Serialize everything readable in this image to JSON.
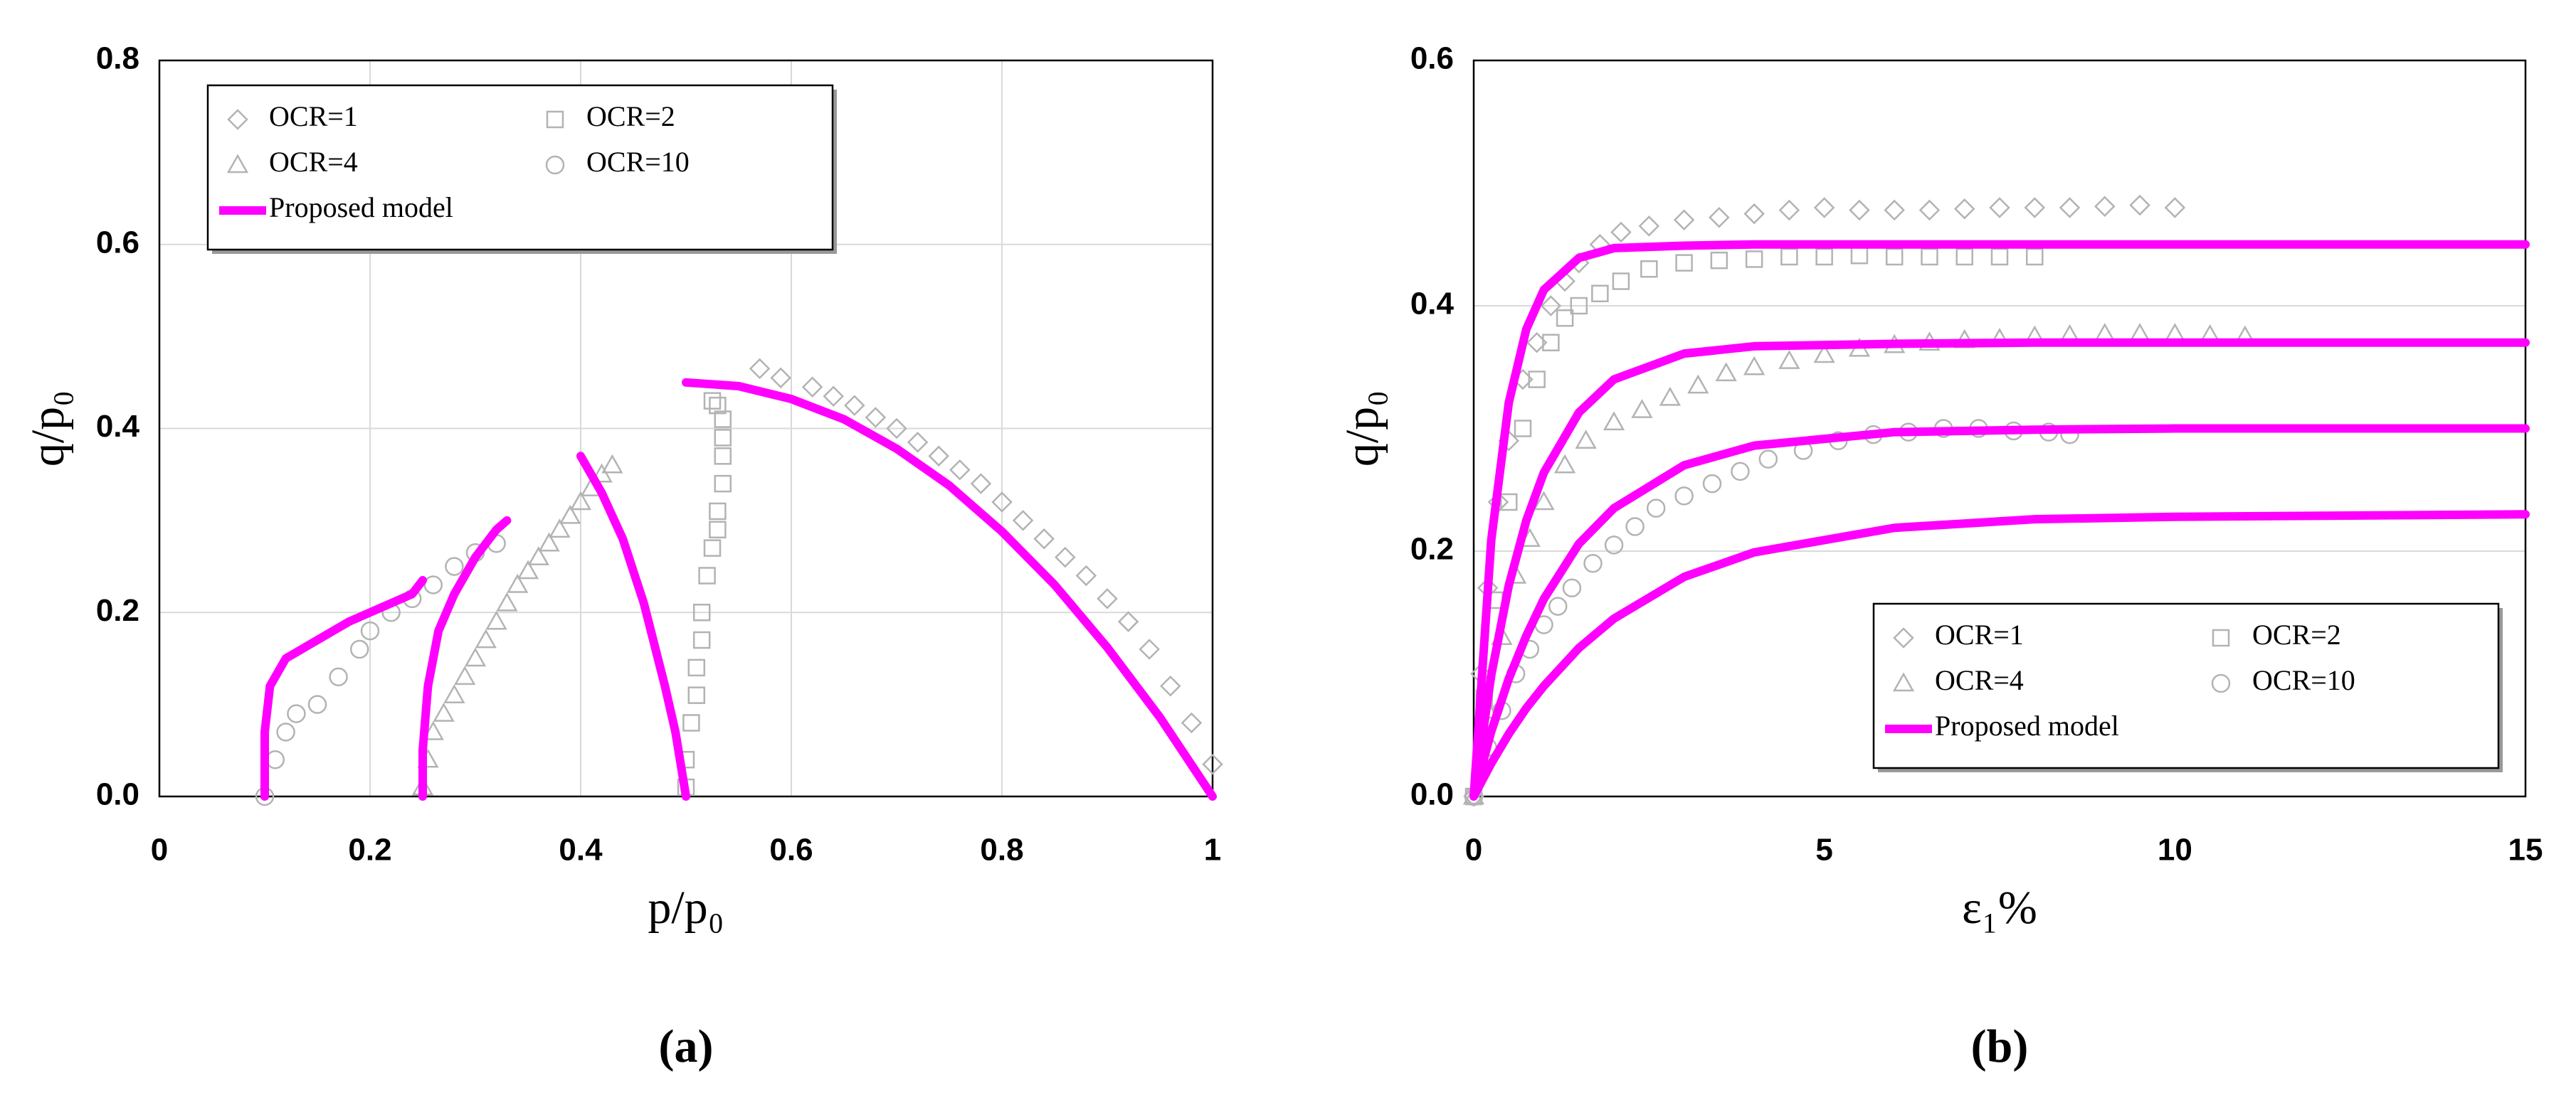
{
  "chart_data": [
    {
      "type": "scatter",
      "caption": "(a)",
      "x_label": "p/p₀",
      "y_label": "q/p₀",
      "xlim": [
        0,
        1
      ],
      "ylim": [
        0,
        0.8
      ],
      "xticks": [
        0,
        0.2,
        0.4,
        0.6,
        0.8,
        1
      ],
      "yticks": [
        {
          "value": 0,
          "label": "0.0"
        },
        0.2,
        0.4,
        0.6,
        0.8
      ],
      "grid": "both",
      "legend": "upper left",
      "series": [
        {
          "name": "OCR=1",
          "color": "#b3b3b3",
          "marker": "diamond",
          "x": [
            0.57,
            0.59,
            0.62,
            0.64,
            0.66,
            0.68,
            0.7,
            0.72,
            0.74,
            0.76,
            0.78,
            0.8,
            0.82,
            0.84,
            0.86,
            0.88,
            0.9,
            0.92,
            0.94,
            0.96,
            0.98,
            1.0
          ],
          "values": [
            0.465,
            0.455,
            0.445,
            0.435,
            0.425,
            0.412,
            0.4,
            0.385,
            0.37,
            0.355,
            0.34,
            0.32,
            0.3,
            0.28,
            0.26,
            0.24,
            0.215,
            0.19,
            0.16,
            0.12,
            0.08,
            0.035
          ]
        },
        {
          "name": "OCR=2",
          "color": "#b3b3b3",
          "marker": "square",
          "x": [
            0.5,
            0.5,
            0.505,
            0.51,
            0.51,
            0.515,
            0.515,
            0.52,
            0.525,
            0.53,
            0.53,
            0.535,
            0.535,
            0.535,
            0.535,
            0.53,
            0.525
          ],
          "values": [
            0.01,
            0.04,
            0.08,
            0.11,
            0.14,
            0.17,
            0.2,
            0.24,
            0.27,
            0.29,
            0.31,
            0.34,
            0.37,
            0.39,
            0.41,
            0.425,
            0.43
          ]
        },
        {
          "name": "OCR=4",
          "color": "#b3b3b3",
          "marker": "triangle",
          "x": [
            0.25,
            0.255,
            0.26,
            0.27,
            0.28,
            0.29,
            0.3,
            0.31,
            0.32,
            0.33,
            0.34,
            0.35,
            0.36,
            0.37,
            0.38,
            0.39,
            0.4,
            0.41,
            0.42,
            0.43
          ],
          "values": [
            0.01,
            0.04,
            0.07,
            0.09,
            0.11,
            0.13,
            0.15,
            0.17,
            0.19,
            0.21,
            0.23,
            0.245,
            0.26,
            0.275,
            0.29,
            0.305,
            0.32,
            0.335,
            0.35,
            0.36
          ]
        },
        {
          "name": "OCR=10",
          "color": "#b3b3b3",
          "marker": "circle",
          "x": [
            0.1,
            0.11,
            0.12,
            0.13,
            0.15,
            0.17,
            0.19,
            0.2,
            0.22,
            0.24,
            0.26,
            0.28,
            0.3,
            0.32
          ],
          "values": [
            0.0,
            0.04,
            0.07,
            0.09,
            0.1,
            0.13,
            0.16,
            0.18,
            0.2,
            0.215,
            0.23,
            0.25,
            0.265,
            0.275
          ]
        },
        {
          "name": "Proposed model",
          "color": "#ff00ff",
          "marker": "line",
          "x": [
            0.1,
            0.1,
            0.105,
            0.12,
            0.15,
            0.18,
            0.21,
            0.24,
            0.25,
            null,
            0.25,
            0.25,
            0.255,
            0.265,
            0.28,
            0.3,
            0.32,
            0.33,
            null,
            0.4,
            0.42,
            0.44,
            0.46,
            0.48,
            0.49,
            0.5,
            null,
            0.5,
            0.55,
            0.6,
            0.65,
            0.7,
            0.75,
            0.8,
            0.85,
            0.9,
            0.95,
            1.0
          ],
          "values": [
            0,
            0.07,
            0.12,
            0.15,
            0.17,
            0.19,
            0.205,
            0.22,
            0.235,
            null,
            0,
            0.05,
            0.12,
            0.18,
            0.22,
            0.26,
            0.29,
            0.3,
            null,
            0.37,
            0.33,
            0.28,
            0.21,
            0.12,
            0.07,
            0,
            null,
            0.45,
            0.446,
            0.432,
            0.41,
            0.378,
            0.338,
            0.288,
            0.23,
            0.162,
            0.086,
            0
          ]
        }
      ]
    },
    {
      "type": "scatter",
      "caption": "(b)",
      "x_label": "ε₁%",
      "y_label": "q/p₀",
      "xlim": [
        0,
        15
      ],
      "ylim": [
        0,
        0.6
      ],
      "xticks": [
        0,
        5,
        10,
        15
      ],
      "yticks": [
        {
          "value": 0,
          "label": "0.0"
        },
        0.2,
        0.4,
        0.6
      ],
      "grid": "y",
      "legend": "lower right",
      "series": [
        {
          "name": "OCR=1",
          "color": "#b3b3b3",
          "marker": "diamond",
          "x": [
            0,
            0.1,
            0.2,
            0.35,
            0.5,
            0.7,
            0.9,
            1.1,
            1.3,
            1.5,
            1.8,
            2.1,
            2.5,
            3,
            3.5,
            4,
            4.5,
            5,
            5.5,
            6,
            6.5,
            7,
            7.5,
            8,
            8.5,
            9,
            9.5,
            10
          ],
          "values": [
            0,
            0.1,
            0.17,
            0.24,
            0.29,
            0.34,
            0.37,
            0.4,
            0.42,
            0.435,
            0.45,
            0.46,
            0.465,
            0.47,
            0.472,
            0.475,
            0.478,
            0.48,
            0.478,
            0.478,
            0.478,
            0.479,
            0.48,
            0.48,
            0.48,
            0.481,
            0.482,
            0.48
          ]
        },
        {
          "name": "OCR=2",
          "color": "#b3b3b3",
          "marker": "square",
          "x": [
            0,
            0.15,
            0.3,
            0.5,
            0.7,
            0.9,
            1.1,
            1.3,
            1.5,
            1.8,
            2.1,
            2.5,
            3,
            3.5,
            4,
            4.5,
            5,
            5.5,
            6,
            6.5,
            7,
            7.5,
            8
          ],
          "values": [
            0,
            0.08,
            0.16,
            0.24,
            0.3,
            0.34,
            0.37,
            0.39,
            0.4,
            0.41,
            0.42,
            0.43,
            0.435,
            0.437,
            0.438,
            0.44,
            0.44,
            0.441,
            0.44,
            0.44,
            0.44,
            0.44,
            0.44
          ]
        },
        {
          "name": "OCR=4",
          "color": "#b3b3b3",
          "marker": "triangle",
          "x": [
            0,
            0.2,
            0.4,
            0.6,
            0.8,
            1,
            1.3,
            1.6,
            2,
            2.4,
            2.8,
            3.2,
            3.6,
            4,
            4.5,
            5,
            5.5,
            6,
            6.5,
            7,
            7.5,
            8,
            8.5,
            9,
            9.5,
            10,
            10.5,
            11
          ],
          "values": [
            0,
            0.07,
            0.13,
            0.18,
            0.21,
            0.24,
            0.27,
            0.29,
            0.305,
            0.315,
            0.325,
            0.335,
            0.345,
            0.35,
            0.355,
            0.36,
            0.365,
            0.368,
            0.37,
            0.372,
            0.373,
            0.375,
            0.376,
            0.377,
            0.377,
            0.377,
            0.376,
            0.375
          ]
        },
        {
          "name": "OCR=10",
          "color": "#b3b3b3",
          "marker": "circle",
          "x": [
            0,
            0.2,
            0.4,
            0.6,
            0.8,
            1,
            1.2,
            1.4,
            1.7,
            2,
            2.3,
            2.6,
            3,
            3.4,
            3.8,
            4.2,
            4.7,
            5.2,
            5.7,
            6.2,
            6.7,
            7.2,
            7.7,
            8.2,
            8.5
          ],
          "values": [
            0,
            0.04,
            0.07,
            0.1,
            0.12,
            0.14,
            0.155,
            0.17,
            0.19,
            0.205,
            0.22,
            0.235,
            0.245,
            0.255,
            0.265,
            0.275,
            0.282,
            0.29,
            0.295,
            0.297,
            0.3,
            0.3,
            0.298,
            0.297,
            0.295
          ]
        },
        {
          "name": "Proposed model",
          "color": "#ff00ff",
          "marker": "line",
          "x": [
            0,
            0.25,
            0.5,
            0.75,
            1,
            1.5,
            2,
            3,
            4,
            6,
            8,
            10,
            15,
            null,
            0,
            0.25,
            0.5,
            0.75,
            1,
            1.5,
            2,
            3,
            4,
            6,
            8,
            10,
            15,
            null,
            0,
            0.25,
            0.5,
            0.75,
            1,
            1.5,
            2,
            3,
            4,
            6,
            8,
            10,
            15,
            null,
            0,
            0.25,
            0.5,
            0.75,
            1,
            1.5,
            2,
            3,
            4,
            6,
            8,
            10,
            15
          ],
          "values": [
            0,
            0.209,
            0.321,
            0.381,
            0.413,
            0.439,
            0.447,
            0.449,
            0.45,
            0.45,
            0.45,
            0.45,
            0.45,
            null,
            0,
            0.099,
            0.172,
            0.225,
            0.264,
            0.313,
            0.34,
            0.361,
            0.367,
            0.369,
            0.37,
            0.37,
            0.37,
            null,
            0,
            0.053,
            0.096,
            0.131,
            0.161,
            0.206,
            0.235,
            0.27,
            0.286,
            0.297,
            0.299,
            0.3,
            0.3,
            null,
            0,
            0.027,
            0.051,
            0.072,
            0.09,
            0.121,
            0.145,
            0.179,
            0.199,
            0.219,
            0.226,
            0.228,
            0.23
          ]
        }
      ]
    }
  ]
}
